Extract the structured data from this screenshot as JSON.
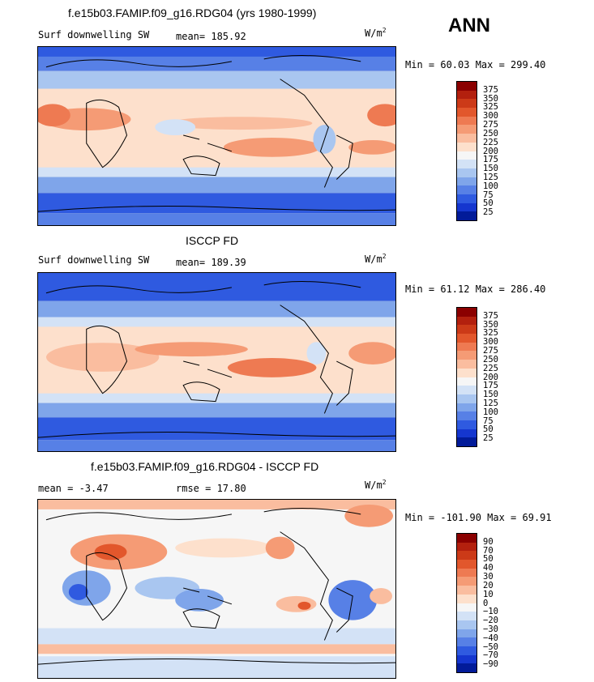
{
  "season": "ANN",
  "panels": [
    {
      "title": "f.e15b03.FAMIP.f09_g16.RDG04 (yrs 1980-1999)",
      "left_label": "Surf downwelling SW",
      "stat_label": "mean= 185.92",
      "units": "W/m",
      "units_sup": "2",
      "minmax": "Min =  60.03 Max = 299.40",
      "colorbar": {
        "labels": [
          "375",
          "350",
          "325",
          "300",
          "275",
          "250",
          "225",
          "200",
          "175",
          "150",
          "125",
          "100",
          "75",
          "50",
          "25"
        ],
        "colors": [
          "#8b0000",
          "#b3200e",
          "#cc3a18",
          "#e2572c",
          "#ee7a52",
          "#f59b75",
          "#fabd9f",
          "#fde0cc",
          "#f6f6f6",
          "#d3e2f6",
          "#a9c6f0",
          "#7fa5ea",
          "#5780e6",
          "#2f5ae0",
          "#1536cf",
          "#021b99"
        ]
      }
    },
    {
      "title": "ISCCP FD",
      "left_label": "Surf downwelling SW",
      "stat_label": "mean= 189.39",
      "units": "W/m",
      "units_sup": "2",
      "minmax": "Min =  61.12 Max = 286.40",
      "colorbar": {
        "labels": [
          "375",
          "350",
          "325",
          "300",
          "275",
          "250",
          "225",
          "200",
          "175",
          "150",
          "125",
          "100",
          "75",
          "50",
          "25"
        ],
        "colors": [
          "#8b0000",
          "#b3200e",
          "#cc3a18",
          "#e2572c",
          "#ee7a52",
          "#f59b75",
          "#fabd9f",
          "#fde0cc",
          "#f6f6f6",
          "#d3e2f6",
          "#a9c6f0",
          "#7fa5ea",
          "#5780e6",
          "#2f5ae0",
          "#1536cf",
          "#021b99"
        ]
      }
    },
    {
      "title": "f.e15b03.FAMIP.f09_g16.RDG04 - ISCCP FD",
      "left_label": "mean =  -3.47",
      "stat_label": "rmse =  17.80",
      "units": "W/m",
      "units_sup": "2",
      "minmax": "Min = -101.90 Max =  69.91",
      "colorbar": {
        "labels": [
          "90",
          "70",
          "50",
          "40",
          "30",
          "20",
          "10",
          "0",
          "−10",
          "−20",
          "−30",
          "−40",
          "−50",
          "−70",
          "−90"
        ],
        "colors": [
          "#8b0000",
          "#b3200e",
          "#cc3a18",
          "#e2572c",
          "#ee7a52",
          "#f59b75",
          "#fabd9f",
          "#fde0cc",
          "#f6f6f6",
          "#d3e2f6",
          "#a9c6f0",
          "#7fa5ea",
          "#5780e6",
          "#2f5ae0",
          "#1536cf",
          "#021b99"
        ]
      }
    }
  ]
}
